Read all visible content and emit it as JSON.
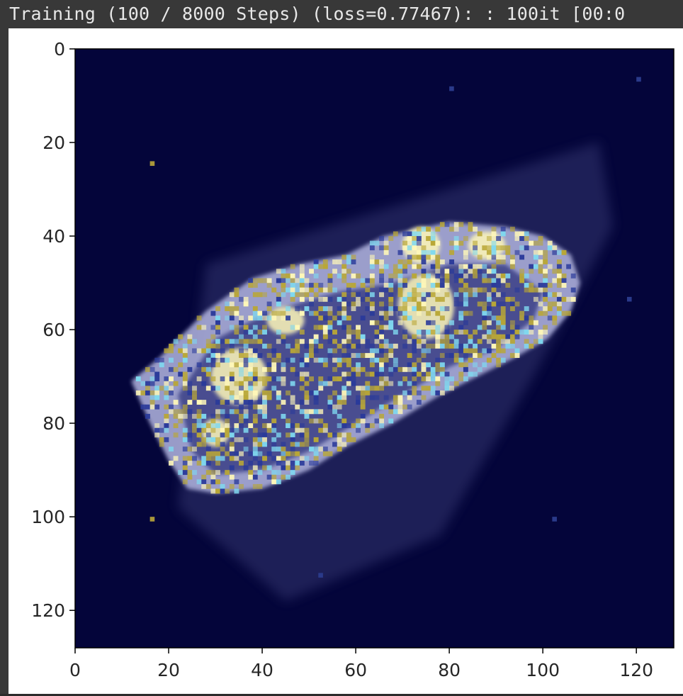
{
  "progress": {
    "text": "Training (100 / 8000 Steps) (loss=0.77467): : 100it [00:0",
    "current_step": 100,
    "total_steps": 8000,
    "loss": 0.77467
  },
  "chart_data": {
    "type": "heatmap",
    "title": "",
    "xlabel": "",
    "ylabel": "",
    "xlim": [
      0,
      128
    ],
    "ylim": [
      128,
      0
    ],
    "x_ticks": [
      0,
      20,
      40,
      60,
      80,
      100,
      120
    ],
    "y_ticks": [
      0,
      20,
      40,
      60,
      80,
      100,
      120
    ],
    "x_tick_labels": [
      "0",
      "20",
      "40",
      "60",
      "80",
      "100",
      "120"
    ],
    "y_tick_labels": [
      "0",
      "20",
      "40",
      "60",
      "80",
      "100",
      "120"
    ],
    "grid": false,
    "background_color": "#04053a",
    "colors": {
      "body_outline": "#a9acd8",
      "bright": "#fff8b8",
      "speckle_yellow": "#b9a736",
      "speckle_blue": "#2a3a9a",
      "speckle_cyan": "#7fd8ef"
    },
    "description_of_content": ""
  }
}
